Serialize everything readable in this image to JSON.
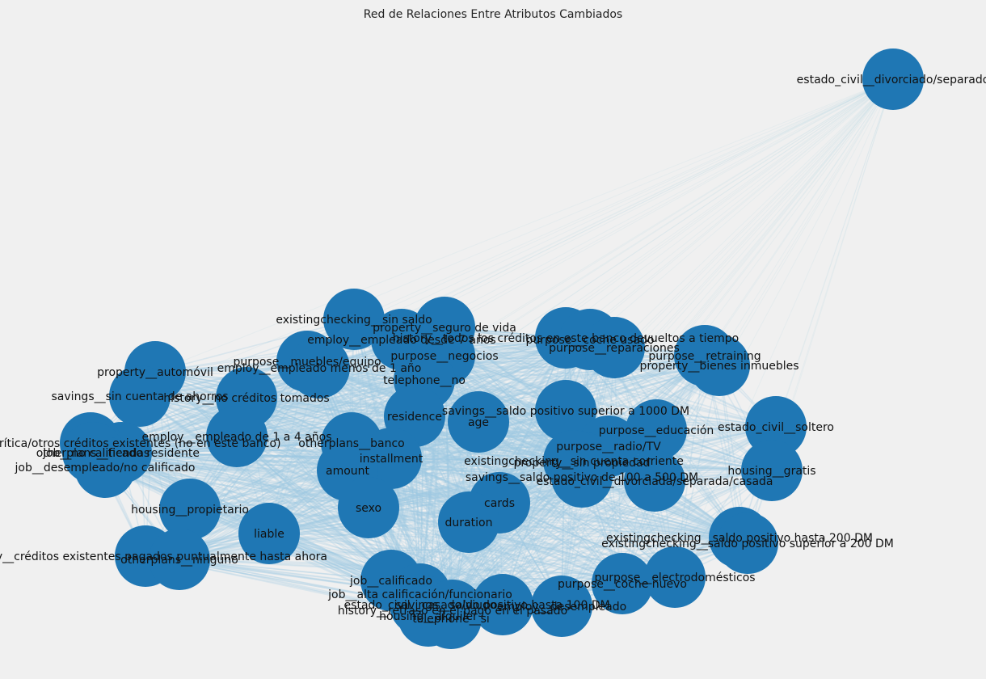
{
  "title": "Red de Relaciones Entre Atributos Cambiados",
  "colors": {
    "background": "#f0f0f0",
    "node": "#1f77b4",
    "edge": "#9ecae1",
    "label": "#111111"
  },
  "chart_data": {
    "type": "network",
    "title": "Red de Relaciones Entre Atributos Cambiados",
    "nodes": [
      "estado_civil__divorciado/separado",
      "existingchecking__sin saldo",
      "property__seguro de vida",
      "history__todos los créditos en este banco devueltos a tiempo",
      "employ__empleado desde 7 años",
      "purpose__coche usado",
      "purpose__reparaciones",
      "purpose__retraining",
      "purpose__muebles/equipo",
      "employ__empleado menos de 1 año",
      "purpose__negocios",
      "property__bienes inmuebles",
      "property__automóvil",
      "telephone__no",
      "savings__sin cuenta de ahorros",
      "history__no créditos tomados",
      "savings__saldo positivo superior a 1000 DM",
      "residence",
      "age",
      "employ__empleado de 1 a 4 años",
      "job__no calificado residente",
      "history__cuenta crítica/otros créditos existentes (no en este banco)",
      "otherplans__banco",
      "otherplans__tiendas",
      "job__desempleado/no calificado",
      "estado_civil__soltero",
      "purpose__educación",
      "purpose__radio/TV",
      "installment",
      "property__sin propiedad",
      "existingchecking__sin cuenta corriente",
      "housing__gratis",
      "amount",
      "savings__saldo positivo de 100 a 500 DM",
      "estado_civil__divorciada/separada/casada",
      "cards",
      "housing__propietario",
      "sexo",
      "duration",
      "liable",
      "existingchecking__saldo positivo hasta 200 DM",
      "existingchecking__saldo positivo superior a 200 DM",
      "history__créditos existentes pagados puntualmente hasta ahora",
      "otherplans__ninguno",
      "purpose__electrodomésticos",
      "employ__desempleado",
      "purpose__coche nuevo",
      "job__calificado",
      "job__alta calificación/funcionario",
      "estado_civil__casado/viudo",
      "savings__saldo positivo hasta 100 DM",
      "history__retraso en el pago en el pasado",
      "housing__alquiler",
      "telephone__si"
    ],
    "edges": "dense"
  },
  "labels": [
    {
      "text": "estado_civil__divorciado/separado"
    },
    {
      "text": "existingchecking__sin saldo"
    },
    {
      "text": "property__seguro de vida"
    },
    {
      "text": "history__todos los créditos en este banco devueltos a tiempo"
    },
    {
      "text": "employ__empleado desde 7 años"
    },
    {
      "text": "purpose__coche usado"
    },
    {
      "text": "purpose__reparaciones"
    },
    {
      "text": "purpose__retraining"
    },
    {
      "text": "purpose__muebles/equipo"
    },
    {
      "text": "employ__empleado menos de 1 año"
    },
    {
      "text": "purpose__negocios"
    },
    {
      "text": "property__bienes inmuebles"
    },
    {
      "text": "property__automóvil"
    },
    {
      "text": "telephone__no"
    },
    {
      "text": "savings__sin cuenta de ahorros"
    },
    {
      "text": "history__no créditos tomados"
    },
    {
      "text": "savings__saldo positivo superior a 1000 DM"
    },
    {
      "text": "residence"
    },
    {
      "text": "age"
    },
    {
      "text": "employ__empleado de 1 a 4 años"
    },
    {
      "text": "job__no calificado residente"
    },
    {
      "text": "history__cuenta crítica/otros créditos existentes (no en este banco)"
    },
    {
      "text": "otherplans__banco"
    },
    {
      "text": "otherplans__tiendas"
    },
    {
      "text": "job__desempleado/no calificado"
    },
    {
      "text": "estado_civil__soltero"
    },
    {
      "text": "purpose__educación"
    },
    {
      "text": "purpose__radio/TV"
    },
    {
      "text": "installment"
    },
    {
      "text": "property__sin propiedad"
    },
    {
      "text": "existingchecking__sin cuenta corriente"
    },
    {
      "text": "housing__gratis"
    },
    {
      "text": "amount"
    },
    {
      "text": "savings__saldo positivo de 100 a 500 DM"
    },
    {
      "text": "estado_civil__divorciada/separada/casada"
    },
    {
      "text": "cards"
    },
    {
      "text": "housing__propietario"
    },
    {
      "text": "sexo"
    },
    {
      "text": "duration"
    },
    {
      "text": "liable"
    },
    {
      "text": "existingchecking__saldo positivo hasta 200 DM"
    },
    {
      "text": "existingchecking__saldo positivo superior a 200 DM"
    },
    {
      "text": "history__créditos existentes pagados puntualmente hasta ahora"
    },
    {
      "text": "otherplans__ninguno"
    },
    {
      "text": "purpose__electrodomésticos"
    },
    {
      "text": "employ__desempleado"
    },
    {
      "text": "purpose__coche nuevo"
    },
    {
      "text": "job__calificado"
    },
    {
      "text": "job__alta calificación/funcionario"
    },
    {
      "text": "estado_civil__casado/viudo"
    },
    {
      "text": "savings__saldo positivo hasta 100 DM"
    },
    {
      "text": "history__retraso en el pago en el pasado"
    },
    {
      "text": "housing__alquiler"
    },
    {
      "text": "telephone__si"
    }
  ]
}
